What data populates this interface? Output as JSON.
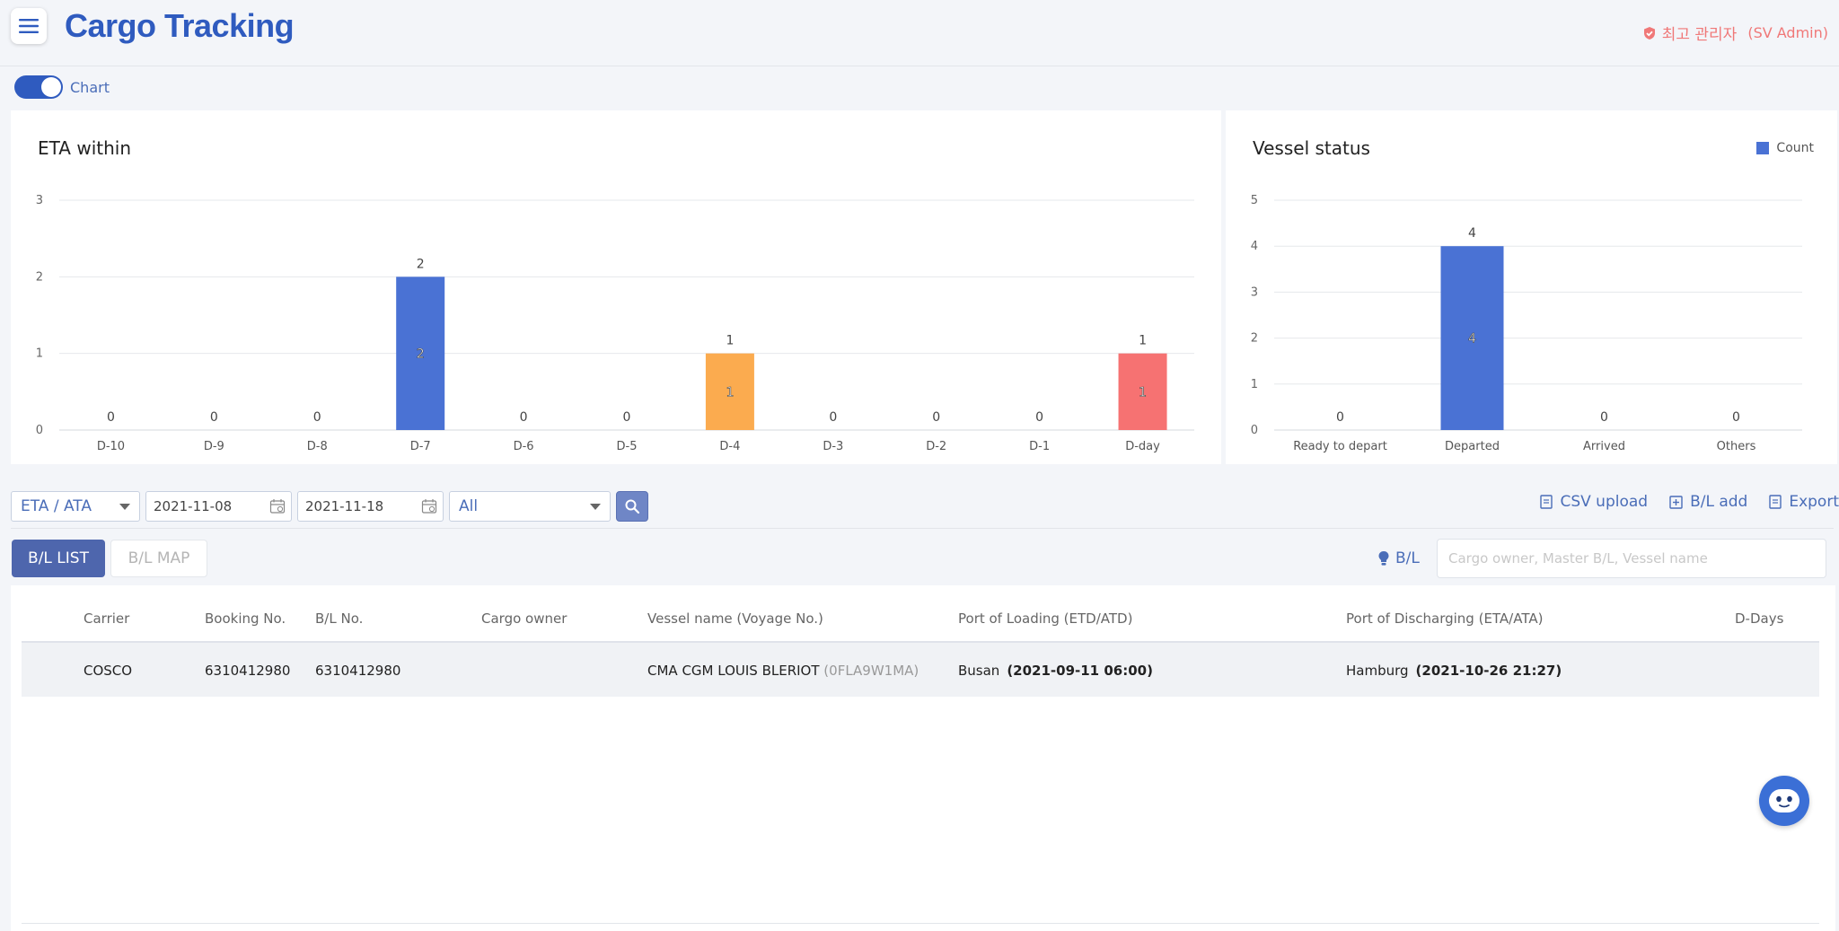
{
  "header": {
    "title": "Cargo Tracking",
    "admin_label": "최고 관리자",
    "admin_sub": "(SV Admin)"
  },
  "chart_toggle": {
    "label": "Chart",
    "on": true
  },
  "chart_data": [
    {
      "type": "bar",
      "title": "ETA within",
      "categories": [
        "D-10",
        "D-9",
        "D-8",
        "D-7",
        "D-6",
        "D-5",
        "D-4",
        "D-3",
        "D-2",
        "D-1",
        "D-day"
      ],
      "values": [
        0,
        0,
        0,
        2,
        0,
        0,
        1,
        0,
        0,
        0,
        1
      ],
      "bar_colors": [
        "#4a72d4",
        "#4a72d4",
        "#4a72d4",
        "#4a72d4",
        "#4a72d4",
        "#4a72d4",
        "#fbab4f",
        "#4a72d4",
        "#4a72d4",
        "#4a72d4",
        "#f67272"
      ],
      "ylim": [
        0,
        3
      ],
      "yticks": [
        "0",
        "1",
        "2",
        "3"
      ],
      "xlabel": "",
      "ylabel": ""
    },
    {
      "type": "bar",
      "title": "Vessel status",
      "categories": [
        "Ready to depart",
        "Departed",
        "Arrived",
        "Others"
      ],
      "values": [
        0,
        4,
        0,
        0
      ],
      "series_name": "Count",
      "color": "#4a72d4",
      "ylim": [
        0,
        5
      ],
      "yticks": [
        "0",
        "1",
        "2",
        "3",
        "4",
        "5"
      ],
      "legend": "top-right",
      "xlabel": "",
      "ylabel": ""
    }
  ],
  "filters": {
    "date_type": "ETA / ATA",
    "date_from": "2021-11-08",
    "date_to": "2021-11-18",
    "status": "All"
  },
  "actions": {
    "csv_upload": "CSV upload",
    "bl_add": "B/L add",
    "export": "Export"
  },
  "tabs": {
    "list": "B/L LIST",
    "map": "B/L MAP"
  },
  "search": {
    "label": "B/L",
    "placeholder": "Cargo owner, Master B/L, Vessel name"
  },
  "table": {
    "headers": {
      "carrier": "Carrier",
      "booking": "Booking No.",
      "bl": "B/L No.",
      "owner": "Cargo owner",
      "vessel": "Vessel name (Voyage No.)",
      "pol": "Port of Loading (ETD/ATD)",
      "pod": "Port of Discharging (ETA/ATA)",
      "ddays": "D-Days"
    },
    "rows": [
      {
        "carrier": "COSCO",
        "booking": "6310412980",
        "bl": "6310412980",
        "owner": "",
        "vessel": "CMA CGM LOUIS BLERIOT",
        "voyage": "(0FLA9W1MA)",
        "pol_port": "Busan",
        "pol_date": "(2021-09-11 06:00)",
        "pod_port": "Hamburg",
        "pod_date": "(2021-10-26 21:27)",
        "ddays": ""
      }
    ]
  },
  "colors": {
    "accent": "#2f5bbf",
    "bar_blue": "#4a72d4",
    "bar_orange": "#fbab4f",
    "bar_red": "#f67272",
    "admin": "#f07878"
  }
}
